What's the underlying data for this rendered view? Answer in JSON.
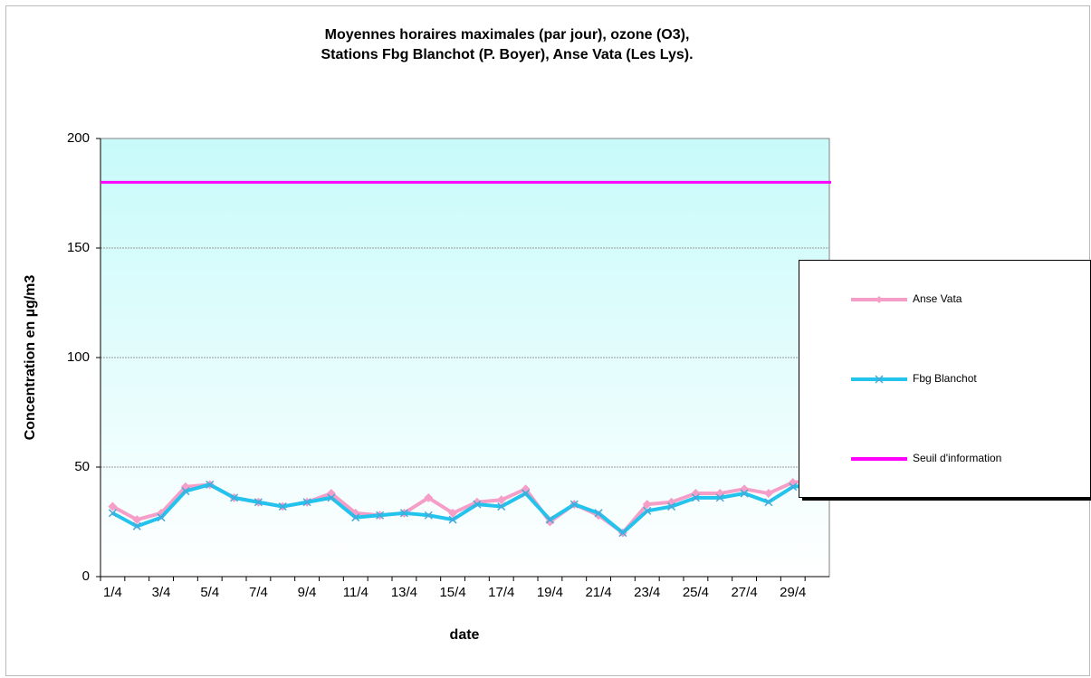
{
  "chart_data": {
    "type": "line",
    "title": [
      "Moyennes horaires maximales (par jour), ozone (O3),",
      "Stations Fbg Blanchot (P. Boyer), Anse Vata (Les Lys)."
    ],
    "x_label": "date",
    "y_label": "Concentration en µg/m3",
    "categories": [
      "1/4",
      null,
      "3/4",
      null,
      "5/4",
      null,
      "7/4",
      null,
      "9/4",
      null,
      "11/4",
      null,
      "13/4",
      null,
      "15/4",
      null,
      "17/4",
      null,
      "19/4",
      null,
      "21/4",
      null,
      "23/4",
      null,
      "25/4",
      null,
      "27/4",
      null,
      "29/4",
      null
    ],
    "series": [
      {
        "name": "Anse Vata",
        "color": "#f59fc8",
        "marker": "diamond",
        "values": [
          32,
          26,
          29,
          41,
          42,
          36,
          34,
          32,
          34,
          38,
          29,
          28,
          29,
          36,
          29,
          34,
          35,
          40,
          25,
          33,
          28,
          20,
          33,
          34,
          38,
          38,
          40,
          38,
          43,
          44
        ]
      },
      {
        "name": "Fbg Blanchot",
        "color": "#22c4ee",
        "marker": "x",
        "values": [
          29,
          23,
          27,
          39,
          42,
          36,
          34,
          32,
          34,
          36,
          27,
          28,
          29,
          28,
          26,
          33,
          32,
          38,
          26,
          33,
          29,
          20,
          30,
          32,
          36,
          36,
          38,
          34,
          41,
          42
        ]
      },
      {
        "name": "Seuil d'information",
        "color": "#ff00ff",
        "marker": "none",
        "values": [
          180,
          180,
          180,
          180,
          180,
          180,
          180,
          180,
          180,
          180,
          180,
          180,
          180,
          180,
          180,
          180,
          180,
          180,
          180,
          180,
          180,
          180,
          180,
          180,
          180,
          180,
          180,
          180,
          180,
          180
        ]
      }
    ],
    "ylim": [
      0,
      200
    ],
    "yticks": [
      0,
      50,
      100,
      150,
      200
    ],
    "grid": true,
    "legend": "right"
  }
}
